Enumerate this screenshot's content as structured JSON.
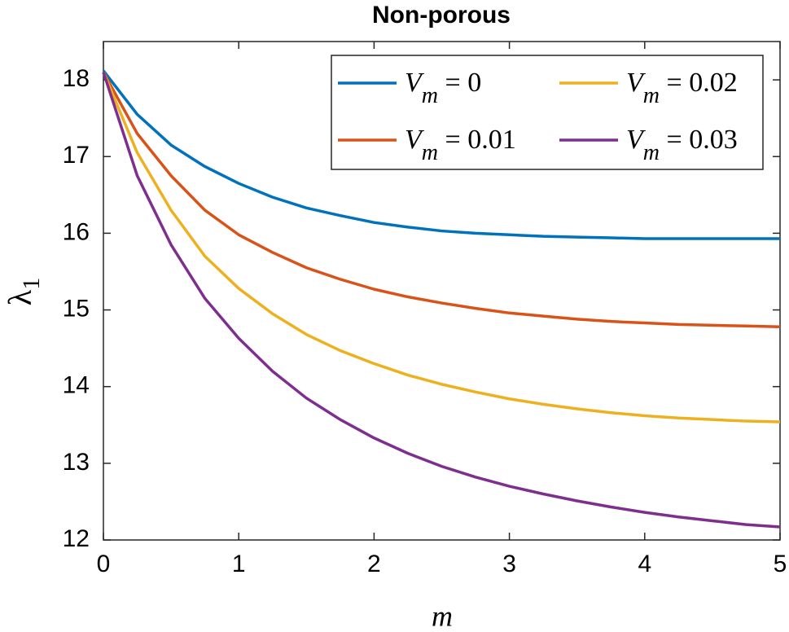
{
  "chart_data": {
    "type": "line",
    "title": "Non-porous",
    "xlabel": "m",
    "ylabel": "λ1",
    "x": [
      0,
      0.25,
      0.5,
      0.75,
      1,
      1.25,
      1.5,
      1.75,
      2,
      2.25,
      2.5,
      2.75,
      3,
      3.25,
      3.5,
      3.75,
      4,
      4.25,
      4.5,
      4.75,
      5
    ],
    "series": [
      {
        "name": "Vm = 0",
        "color": "#0072bd",
        "values": [
          18.12,
          17.55,
          17.15,
          16.87,
          16.65,
          16.47,
          16.33,
          16.23,
          16.14,
          16.08,
          16.03,
          16.0,
          15.98,
          15.96,
          15.95,
          15.94,
          15.93,
          15.93,
          15.93,
          15.93,
          15.93
        ]
      },
      {
        "name": "Vm = 0.01",
        "color": "#d95319",
        "values": [
          18.1,
          17.3,
          16.75,
          16.3,
          15.98,
          15.75,
          15.55,
          15.4,
          15.27,
          15.17,
          15.09,
          15.02,
          14.96,
          14.92,
          14.88,
          14.85,
          14.83,
          14.81,
          14.8,
          14.79,
          14.78
        ]
      },
      {
        "name": "Vm = 0.02",
        "color": "#edb120",
        "values": [
          18.1,
          17.05,
          16.3,
          15.7,
          15.28,
          14.95,
          14.68,
          14.47,
          14.3,
          14.15,
          14.03,
          13.93,
          13.84,
          13.77,
          13.71,
          13.66,
          13.62,
          13.59,
          13.57,
          13.55,
          13.54
        ]
      },
      {
        "name": "Vm = 0.03",
        "color": "#7e2f8e",
        "values": [
          18.1,
          16.75,
          15.85,
          15.15,
          14.63,
          14.2,
          13.85,
          13.57,
          13.33,
          13.13,
          12.96,
          12.82,
          12.7,
          12.6,
          12.51,
          12.43,
          12.36,
          12.3,
          12.25,
          12.2,
          12.17
        ]
      }
    ],
    "xlim": [
      0,
      5
    ],
    "xticks": [
      0,
      1,
      2,
      3,
      4,
      5
    ],
    "ylim": [
      12,
      18.5
    ],
    "yticks": [
      12,
      13,
      14,
      15,
      16,
      17,
      18
    ],
    "legend": "upper right"
  }
}
